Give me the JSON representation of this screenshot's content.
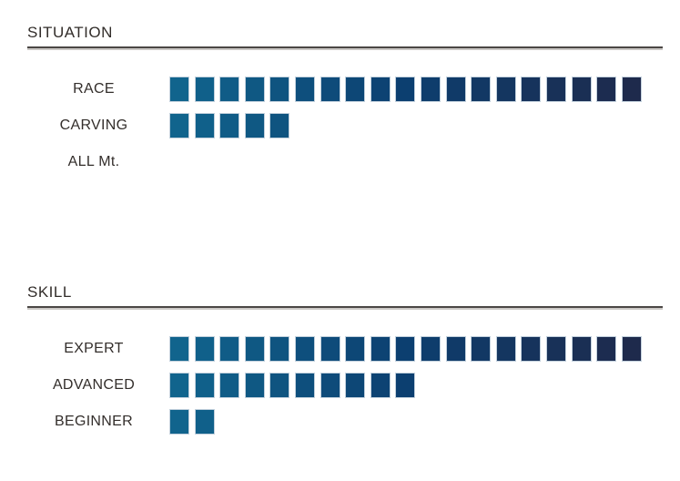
{
  "chart_data": {
    "type": "bar",
    "orientation": "horizontal",
    "unit": "filled squares",
    "scale_max": 19,
    "square_colors": {
      "start": "#11648D",
      "mid": "#0C3F70",
      "end": "#1E2A4C",
      "border": "#C3D1DD"
    },
    "rule_color": "#4B4745",
    "sections": [
      {
        "title": "SITUATION",
        "rows": [
          {
            "label": "RACE",
            "value": 19
          },
          {
            "label": "CARVING",
            "value": 5
          },
          {
            "label": "ALL Mt.",
            "value": 0
          }
        ]
      },
      {
        "title": "SKILL",
        "rows": [
          {
            "label": "EXPERT",
            "value": 19
          },
          {
            "label": "ADVANCED",
            "value": 10
          },
          {
            "label": "BEGINNER",
            "value": 2
          }
        ]
      }
    ]
  }
}
